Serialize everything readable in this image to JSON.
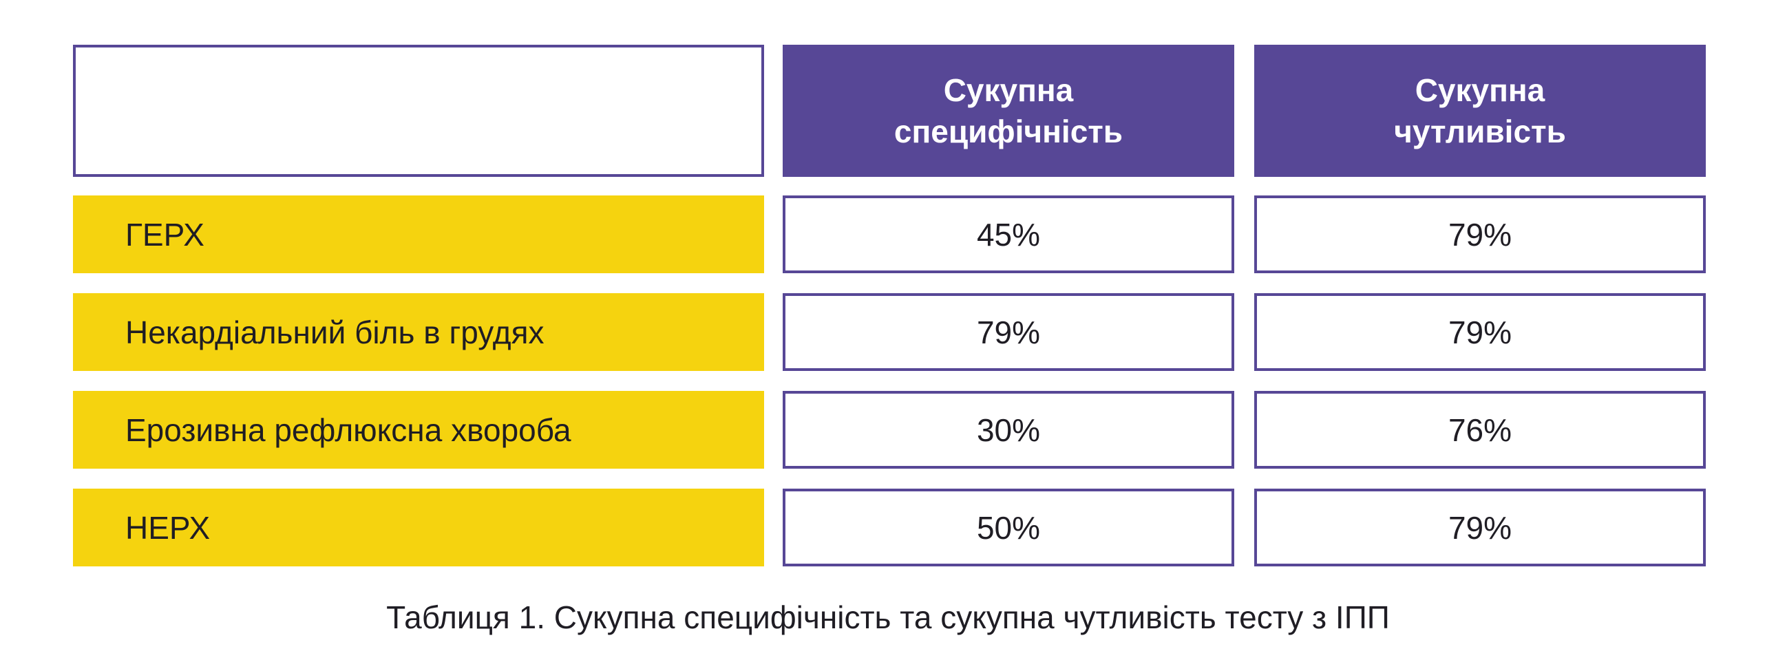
{
  "table": {
    "headers": [
      "Сукупна\nспецифічність",
      "Сукупна\nчутливість"
    ],
    "rows": [
      {
        "label": "ГЕРХ",
        "specificity": "45%",
        "sensitivity": "79%"
      },
      {
        "label": "Некардіальний біль в грудях",
        "specificity": "79%",
        "sensitivity": "79%"
      },
      {
        "label": "Ерозивна рефлюксна хвороба",
        "specificity": "30%",
        "sensitivity": "76%"
      },
      {
        "label": "НЕРХ",
        "specificity": "50%",
        "sensitivity": "79%"
      }
    ]
  },
  "caption": "Таблиця 1. Сукупна специфічність та сукупна чутливість тесту з ІПП",
  "colors": {
    "header_bg": "#574796",
    "row_label_bg": "#f5d30f",
    "border": "#574796",
    "text": "#1f1d24"
  }
}
